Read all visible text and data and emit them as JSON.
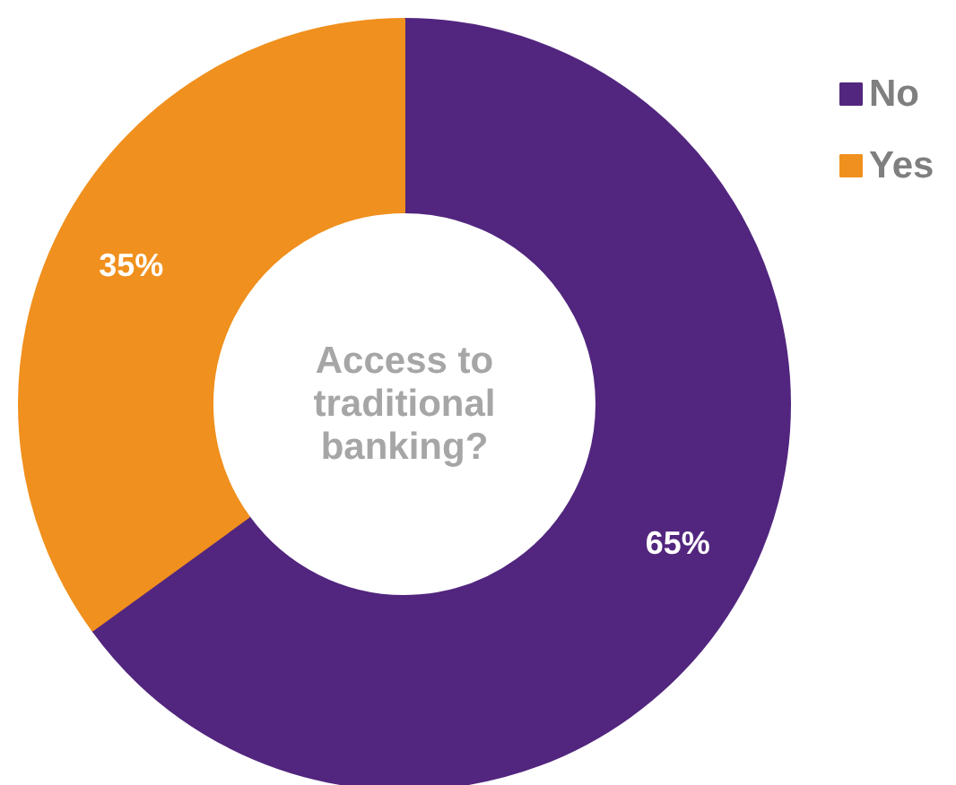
{
  "chart_data": {
    "type": "donut",
    "title": "Access to\ntraditional\nbanking?",
    "categories": [
      "No",
      "Yes"
    ],
    "values": [
      65,
      35
    ],
    "colors": [
      "#52267f",
      "#f0901e"
    ],
    "value_labels": [
      "65%",
      "35%"
    ],
    "legend": "top right"
  }
}
